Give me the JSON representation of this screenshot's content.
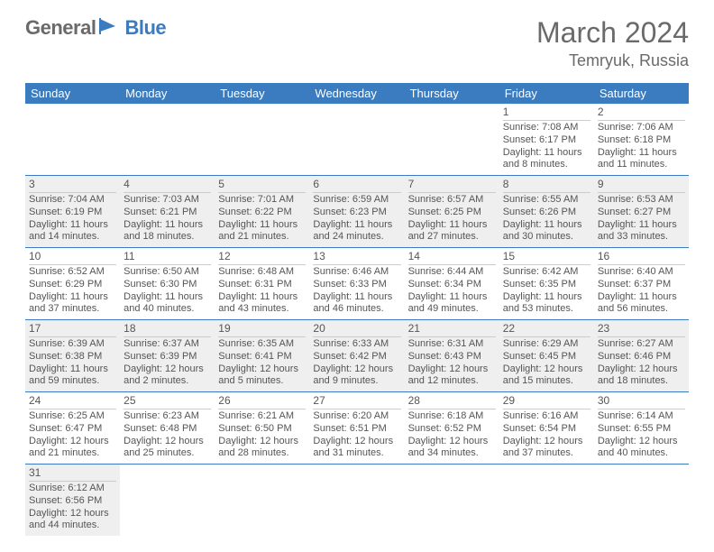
{
  "logo": {
    "general": "General",
    "blue": "Blue"
  },
  "title": "March 2024",
  "location": "Temryuk, Russia",
  "colors": {
    "header_bg": "#3b7bbf",
    "alt_bg": "#efefef",
    "text": "#555555",
    "row_border": "#3b7bbf"
  },
  "day_headers": [
    "Sunday",
    "Monday",
    "Tuesday",
    "Wednesday",
    "Thursday",
    "Friday",
    "Saturday"
  ],
  "weeks": [
    [
      {
        "day": "",
        "lines": []
      },
      {
        "day": "",
        "lines": []
      },
      {
        "day": "",
        "lines": []
      },
      {
        "day": "",
        "lines": []
      },
      {
        "day": "",
        "lines": []
      },
      {
        "day": "1",
        "lines": [
          "Sunrise: 7:08 AM",
          "Sunset: 6:17 PM",
          "Daylight: 11 hours and 8 minutes."
        ]
      },
      {
        "day": "2",
        "lines": [
          "Sunrise: 7:06 AM",
          "Sunset: 6:18 PM",
          "Daylight: 11 hours and 11 minutes."
        ]
      }
    ],
    [
      {
        "day": "3",
        "lines": [
          "Sunrise: 7:04 AM",
          "Sunset: 6:19 PM",
          "Daylight: 11 hours and 14 minutes."
        ]
      },
      {
        "day": "4",
        "lines": [
          "Sunrise: 7:03 AM",
          "Sunset: 6:21 PM",
          "Daylight: 11 hours and 18 minutes."
        ]
      },
      {
        "day": "5",
        "lines": [
          "Sunrise: 7:01 AM",
          "Sunset: 6:22 PM",
          "Daylight: 11 hours and 21 minutes."
        ]
      },
      {
        "day": "6",
        "lines": [
          "Sunrise: 6:59 AM",
          "Sunset: 6:23 PM",
          "Daylight: 11 hours and 24 minutes."
        ]
      },
      {
        "day": "7",
        "lines": [
          "Sunrise: 6:57 AM",
          "Sunset: 6:25 PM",
          "Daylight: 11 hours and 27 minutes."
        ]
      },
      {
        "day": "8",
        "lines": [
          "Sunrise: 6:55 AM",
          "Sunset: 6:26 PM",
          "Daylight: 11 hours and 30 minutes."
        ]
      },
      {
        "day": "9",
        "lines": [
          "Sunrise: 6:53 AM",
          "Sunset: 6:27 PM",
          "Daylight: 11 hours and 33 minutes."
        ]
      }
    ],
    [
      {
        "day": "10",
        "lines": [
          "Sunrise: 6:52 AM",
          "Sunset: 6:29 PM",
          "Daylight: 11 hours and 37 minutes."
        ]
      },
      {
        "day": "11",
        "lines": [
          "Sunrise: 6:50 AM",
          "Sunset: 6:30 PM",
          "Daylight: 11 hours and 40 minutes."
        ]
      },
      {
        "day": "12",
        "lines": [
          "Sunrise: 6:48 AM",
          "Sunset: 6:31 PM",
          "Daylight: 11 hours and 43 minutes."
        ]
      },
      {
        "day": "13",
        "lines": [
          "Sunrise: 6:46 AM",
          "Sunset: 6:33 PM",
          "Daylight: 11 hours and 46 minutes."
        ]
      },
      {
        "day": "14",
        "lines": [
          "Sunrise: 6:44 AM",
          "Sunset: 6:34 PM",
          "Daylight: 11 hours and 49 minutes."
        ]
      },
      {
        "day": "15",
        "lines": [
          "Sunrise: 6:42 AM",
          "Sunset: 6:35 PM",
          "Daylight: 11 hours and 53 minutes."
        ]
      },
      {
        "day": "16",
        "lines": [
          "Sunrise: 6:40 AM",
          "Sunset: 6:37 PM",
          "Daylight: 11 hours and 56 minutes."
        ]
      }
    ],
    [
      {
        "day": "17",
        "lines": [
          "Sunrise: 6:39 AM",
          "Sunset: 6:38 PM",
          "Daylight: 11 hours and 59 minutes."
        ]
      },
      {
        "day": "18",
        "lines": [
          "Sunrise: 6:37 AM",
          "Sunset: 6:39 PM",
          "Daylight: 12 hours and 2 minutes."
        ]
      },
      {
        "day": "19",
        "lines": [
          "Sunrise: 6:35 AM",
          "Sunset: 6:41 PM",
          "Daylight: 12 hours and 5 minutes."
        ]
      },
      {
        "day": "20",
        "lines": [
          "Sunrise: 6:33 AM",
          "Sunset: 6:42 PM",
          "Daylight: 12 hours and 9 minutes."
        ]
      },
      {
        "day": "21",
        "lines": [
          "Sunrise: 6:31 AM",
          "Sunset: 6:43 PM",
          "Daylight: 12 hours and 12 minutes."
        ]
      },
      {
        "day": "22",
        "lines": [
          "Sunrise: 6:29 AM",
          "Sunset: 6:45 PM",
          "Daylight: 12 hours and 15 minutes."
        ]
      },
      {
        "day": "23",
        "lines": [
          "Sunrise: 6:27 AM",
          "Sunset: 6:46 PM",
          "Daylight: 12 hours and 18 minutes."
        ]
      }
    ],
    [
      {
        "day": "24",
        "lines": [
          "Sunrise: 6:25 AM",
          "Sunset: 6:47 PM",
          "Daylight: 12 hours and 21 minutes."
        ]
      },
      {
        "day": "25",
        "lines": [
          "Sunrise: 6:23 AM",
          "Sunset: 6:48 PM",
          "Daylight: 12 hours and 25 minutes."
        ]
      },
      {
        "day": "26",
        "lines": [
          "Sunrise: 6:21 AM",
          "Sunset: 6:50 PM",
          "Daylight: 12 hours and 28 minutes."
        ]
      },
      {
        "day": "27",
        "lines": [
          "Sunrise: 6:20 AM",
          "Sunset: 6:51 PM",
          "Daylight: 12 hours and 31 minutes."
        ]
      },
      {
        "day": "28",
        "lines": [
          "Sunrise: 6:18 AM",
          "Sunset: 6:52 PM",
          "Daylight: 12 hours and 34 minutes."
        ]
      },
      {
        "day": "29",
        "lines": [
          "Sunrise: 6:16 AM",
          "Sunset: 6:54 PM",
          "Daylight: 12 hours and 37 minutes."
        ]
      },
      {
        "day": "30",
        "lines": [
          "Sunrise: 6:14 AM",
          "Sunset: 6:55 PM",
          "Daylight: 12 hours and 40 minutes."
        ]
      }
    ],
    [
      {
        "day": "31",
        "lines": [
          "Sunrise: 6:12 AM",
          "Sunset: 6:56 PM",
          "Daylight: 12 hours and 44 minutes."
        ]
      },
      {
        "day": "",
        "lines": []
      },
      {
        "day": "",
        "lines": []
      },
      {
        "day": "",
        "lines": []
      },
      {
        "day": "",
        "lines": []
      },
      {
        "day": "",
        "lines": []
      },
      {
        "day": "",
        "lines": []
      }
    ]
  ]
}
